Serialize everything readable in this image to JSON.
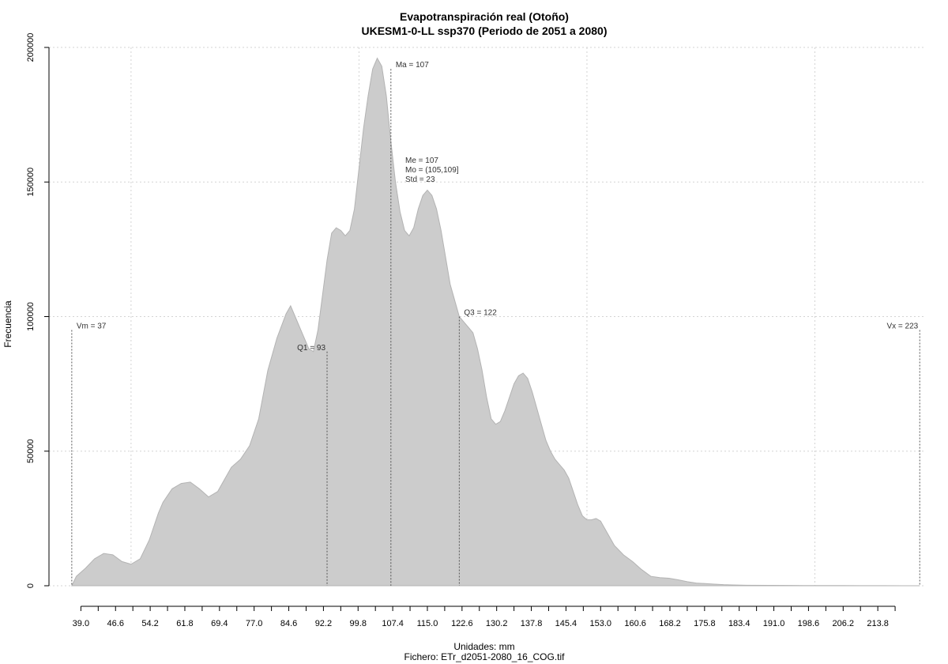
{
  "chart_data": {
    "type": "area",
    "title": "Evapotranspiración real (Otoño)",
    "subtitle": "UKESM1-0-LL ssp370 (Periodo de 2051 a 2080)",
    "xlabel": "Unidades: mm",
    "footer": "Fichero: ETr_d2051-2080_16_COG.tif",
    "ylabel": "Frecuencia",
    "xlim": [
      32,
      224
    ],
    "ylim": [
      0,
      200000
    ],
    "grid": true,
    "x_ticks": [
      "39.0",
      "46.6",
      "54.2",
      "61.8",
      "69.4",
      "77.0",
      "84.6",
      "92.2",
      "99.8",
      "107.4",
      "115.0",
      "122.6",
      "130.2",
      "137.8",
      "145.4",
      "153.0",
      "160.6",
      "168.2",
      "175.8",
      "183.4",
      "191.0",
      "198.6",
      "206.2",
      "213.8"
    ],
    "y_ticks": [
      "0",
      "50000",
      "100000",
      "150000",
      "200000"
    ],
    "fill_color": "#cccccc",
    "stroke_color": "#b3b3b3",
    "series": [
      {
        "x": [
          37,
          38,
          40,
          42,
          44,
          46,
          48,
          50,
          52,
          54,
          56,
          57,
          59,
          61,
          63,
          65,
          67,
          69,
          70,
          72,
          74,
          76,
          78,
          80,
          82,
          84,
          85,
          86,
          88,
          89,
          90,
          91,
          92,
          93,
          94,
          95,
          96,
          97,
          98,
          99,
          100,
          101,
          102,
          103,
          104,
          105,
          106,
          107,
          108,
          109,
          110,
          111,
          112,
          113,
          114,
          115,
          116,
          117,
          118,
          119,
          120,
          121,
          122,
          123,
          124,
          125,
          126,
          127,
          128,
          129,
          130,
          131,
          132,
          133,
          134,
          135,
          136,
          137,
          138,
          139,
          140,
          141,
          142,
          143,
          144,
          145,
          146,
          147,
          148,
          149,
          150,
          151,
          152,
          153,
          154,
          156,
          158,
          160,
          162,
          164,
          166,
          168,
          170,
          172,
          174,
          176,
          178,
          180,
          182,
          185,
          190,
          195,
          200,
          205,
          210,
          215,
          220,
          223
        ],
        "y": [
          0,
          3500,
          6500,
          10000,
          12000,
          11500,
          9000,
          8000,
          10000,
          17000,
          27000,
          31000,
          36000,
          38000,
          38500,
          36000,
          33000,
          35000,
          38000,
          44000,
          47000,
          52000,
          62000,
          80000,
          92000,
          101000,
          104000,
          100000,
          92000,
          88000,
          87000,
          95000,
          108000,
          121000,
          131000,
          133000,
          132000,
          130000,
          132000,
          140000,
          155000,
          170000,
          182000,
          192000,
          196000,
          193000,
          182000,
          165000,
          150000,
          139000,
          132000,
          130000,
          133000,
          140000,
          145000,
          147000,
          145000,
          140000,
          132000,
          122000,
          112000,
          106000,
          100000,
          98000,
          96000,
          94000,
          88000,
          80000,
          70000,
          62000,
          60000,
          61000,
          65000,
          70000,
          75000,
          78000,
          79000,
          77000,
          72000,
          66000,
          60000,
          54000,
          50000,
          47000,
          45000,
          43000,
          40000,
          35000,
          30000,
          26000,
          24500,
          24500,
          25000,
          24000,
          21000,
          15000,
          11500,
          9000,
          6000,
          3500,
          3000,
          2800,
          2200,
          1500,
          1000,
          800,
          600,
          400,
          300,
          200,
          150,
          100,
          80,
          60,
          40,
          30,
          10,
          0
        ]
      }
    ],
    "vlines": [
      {
        "x": 37,
        "y": 95000,
        "label": "Vm = 37",
        "label_anchor": "start"
      },
      {
        "x": 93,
        "y": 87000,
        "label": "Q1 = 93",
        "label_anchor": "end"
      },
      {
        "x": 107,
        "y": 192000,
        "label": "Ma = 107",
        "label_anchor": "start"
      },
      {
        "x": 122,
        "y": 100000,
        "label": "Q3 = 122",
        "label_anchor": "start"
      },
      {
        "x": 223,
        "y": 95000,
        "label": "Vx = 223",
        "label_anchor": "end"
      }
    ],
    "stats": [
      "Me = 107",
      "Mo = (105,109]",
      "Std = 23"
    ]
  }
}
